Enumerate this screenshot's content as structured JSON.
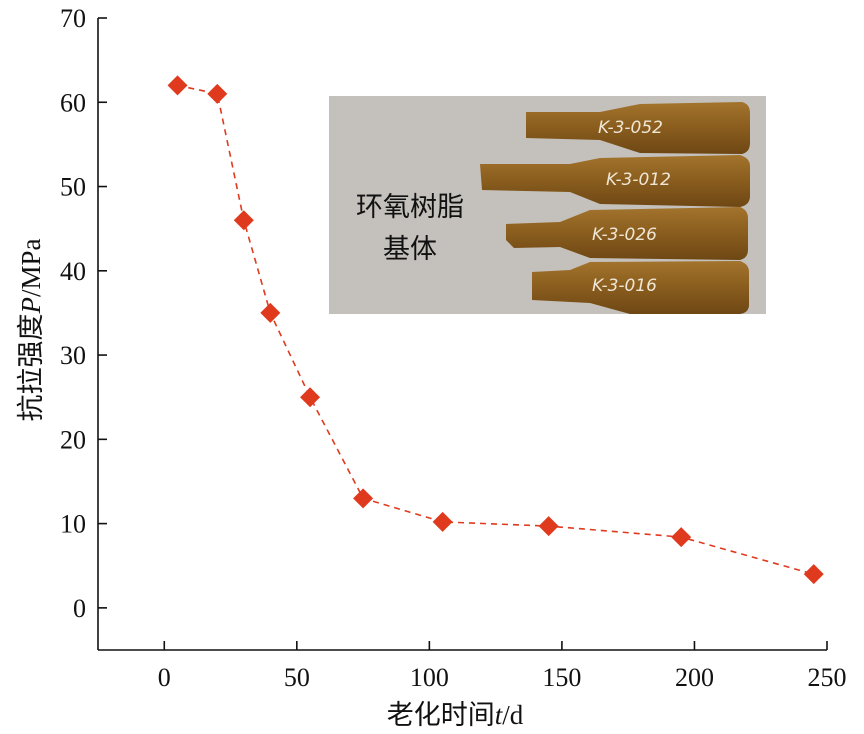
{
  "chart_data": {
    "type": "line",
    "xlabel": {
      "prefix": "老化时间",
      "var": "t",
      "unit": "/d"
    },
    "ylabel": {
      "prefix": "抗拉强度",
      "var": "P",
      "unit": "/MPa"
    },
    "xlim": [
      -25,
      250
    ],
    "ylim": [
      -5,
      70
    ],
    "xticks": [
      0,
      50,
      100,
      150,
      200,
      250
    ],
    "yticks": [
      0,
      10,
      20,
      30,
      40,
      50,
      60,
      70
    ],
    "grid": false,
    "series": [
      {
        "marker": "diamond",
        "line_style": "dashed",
        "color": "#e03a1e",
        "x": [
          5,
          20,
          30,
          40,
          55,
          75,
          105,
          145,
          195,
          245
        ],
        "y": [
          62,
          61,
          46,
          35,
          25,
          13,
          10.2,
          9.7,
          8.4,
          4
        ]
      }
    ],
    "inset": {
      "caption_lines": [
        "环氧树脂",
        "基体"
      ],
      "specimen_labels": [
        "K-3-052",
        "K-3-012",
        "K-3-026",
        "K-3-016"
      ]
    }
  }
}
